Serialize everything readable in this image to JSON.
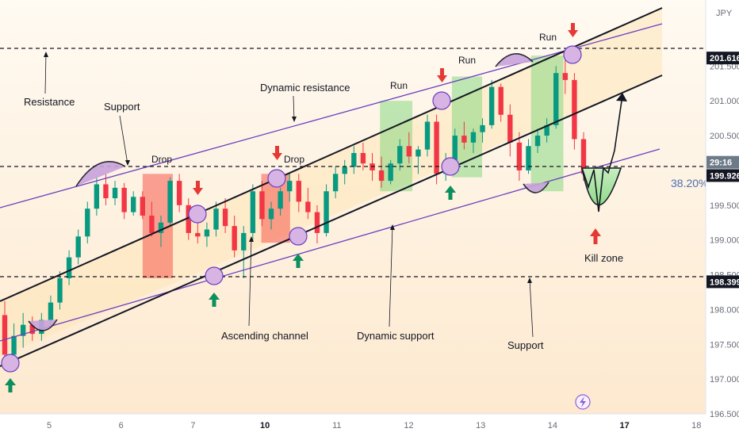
{
  "currency": "JPY",
  "chart_data": {
    "type": "candlestick",
    "y_axis": {
      "ticks": [
        "201.500",
        "201.000",
        "200.500",
        "199.500",
        "199.000",
        "198.500",
        "198.000",
        "197.500",
        "197.000",
        "196.500"
      ],
      "tick_values": [
        201.5,
        201.0,
        200.5,
        199.5,
        199.0,
        198.5,
        198.0,
        197.5,
        197.0,
        196.5
      ],
      "range": [
        196.5,
        202.45
      ]
    },
    "x_axis": {
      "labels": [
        "5",
        "6",
        "7",
        "10",
        "11",
        "12",
        "13",
        "14",
        "17",
        "18"
      ],
      "positions": [
        1,
        2,
        3,
        4,
        5,
        6,
        7,
        8,
        9,
        10
      ],
      "bold": [
        "10",
        "17"
      ]
    },
    "price_labels": [
      {
        "text": "201.616",
        "value": 201.616,
        "style": "dark"
      },
      {
        "text": "29:16",
        "value": 199.98,
        "style": "countdown"
      },
      {
        "text": "199.926",
        "value": 199.926,
        "style": "dark"
      },
      {
        "text": "198.399",
        "value": 198.399,
        "style": "dark"
      }
    ],
    "fib_label": "38.20%",
    "annotations": {
      "resistance": "Resistance",
      "support_top": "Support",
      "dynamic_resistance": "Dynamic resistance",
      "ascending_channel": "Ascending channel",
      "dynamic_support": "Dynamic support",
      "support_bottom": "Support",
      "kill_zone": "Kill zone",
      "drop": "Drop",
      "run": "Run"
    },
    "levels": {
      "resistance": 201.616,
      "support": 199.926,
      "lower_support": 198.399
    },
    "zones": [
      {
        "kind": "drop",
        "x0": 2.3,
        "x1": 2.72,
        "y0": 198.45,
        "y1": 199.95
      },
      {
        "kind": "drop",
        "x0": 3.95,
        "x1": 4.35,
        "y0": 198.96,
        "y1": 199.95
      },
      {
        "kind": "run",
        "x0": 5.6,
        "x1": 6.05,
        "y0": 199.7,
        "y1": 201.0
      },
      {
        "kind": "run",
        "x0": 6.6,
        "x1": 7.02,
        "y0": 199.9,
        "y1": 201.35
      },
      {
        "kind": "run",
        "x0": 7.7,
        "x1": 8.15,
        "y0": 199.7,
        "y1": 201.65
      }
    ],
    "candles": [
      [
        197.92,
        198.12,
        197.2,
        197.35
      ],
      [
        197.35,
        197.8,
        197.25,
        197.62
      ],
      [
        197.62,
        197.95,
        197.45,
        197.78
      ],
      [
        197.78,
        197.9,
        197.55,
        197.65
      ],
      [
        197.65,
        197.95,
        197.55,
        197.85
      ],
      [
        197.85,
        198.2,
        197.78,
        198.1
      ],
      [
        198.1,
        198.55,
        198.0,
        198.45
      ],
      [
        198.45,
        198.85,
        198.35,
        198.75
      ],
      [
        198.75,
        199.15,
        198.65,
        199.05
      ],
      [
        199.05,
        199.55,
        198.95,
        199.45
      ],
      [
        199.45,
        199.9,
        199.35,
        199.8
      ],
      [
        199.8,
        199.95,
        199.5,
        199.6
      ],
      [
        199.6,
        199.85,
        199.5,
        199.75
      ],
      [
        199.75,
        199.82,
        199.3,
        199.4
      ],
      [
        199.4,
        199.7,
        199.35,
        199.62
      ],
      [
        199.62,
        199.7,
        199.3,
        199.35
      ],
      [
        199.35,
        199.55,
        199.05,
        199.1
      ],
      [
        199.1,
        199.35,
        198.9,
        199.25
      ],
      [
        199.25,
        199.9,
        199.2,
        199.85
      ],
      [
        199.85,
        199.95,
        199.4,
        199.5
      ],
      [
        199.5,
        199.6,
        199.0,
        199.1
      ],
      [
        199.1,
        199.3,
        198.95,
        199.05
      ],
      [
        199.05,
        199.25,
        198.9,
        199.15
      ],
      [
        199.15,
        199.55,
        199.05,
        199.45
      ],
      [
        199.45,
        199.6,
        199.1,
        199.2
      ],
      [
        199.2,
        199.35,
        198.75,
        198.85
      ],
      [
        198.85,
        199.2,
        198.45,
        199.1
      ],
      [
        199.1,
        199.8,
        199.0,
        199.7
      ],
      [
        199.7,
        199.85,
        199.2,
        199.3
      ],
      [
        199.3,
        199.55,
        199.15,
        199.45
      ],
      [
        199.45,
        199.75,
        199.35,
        199.7
      ],
      [
        199.7,
        199.95,
        199.55,
        199.85
      ],
      [
        199.85,
        199.95,
        199.4,
        199.55
      ],
      [
        199.55,
        199.75,
        199.3,
        199.4
      ],
      [
        199.4,
        199.5,
        198.95,
        199.1
      ],
      [
        199.1,
        199.8,
        199.05,
        199.7
      ],
      [
        199.7,
        200.05,
        199.6,
        199.95
      ],
      [
        199.95,
        200.15,
        199.8,
        200.05
      ],
      [
        200.05,
        200.35,
        199.95,
        200.25
      ],
      [
        200.25,
        200.4,
        200.0,
        200.1
      ],
      [
        200.1,
        200.25,
        199.85,
        200.0
      ],
      [
        200.0,
        200.2,
        199.75,
        199.85
      ],
      [
        199.85,
        200.15,
        199.8,
        200.1
      ],
      [
        200.1,
        200.45,
        200.0,
        200.35
      ],
      [
        200.35,
        200.55,
        200.1,
        200.2
      ],
      [
        200.2,
        200.35,
        199.95,
        200.3
      ],
      [
        200.3,
        200.8,
        200.2,
        200.7
      ],
      [
        200.7,
        200.8,
        199.8,
        199.95
      ],
      [
        199.95,
        200.25,
        199.85,
        200.15
      ],
      [
        200.15,
        200.6,
        200.05,
        200.5
      ],
      [
        200.5,
        200.7,
        200.3,
        200.4
      ],
      [
        200.4,
        200.6,
        200.25,
        200.55
      ],
      [
        200.55,
        200.75,
        200.4,
        200.65
      ],
      [
        200.65,
        201.3,
        200.6,
        201.2
      ],
      [
        201.2,
        201.25,
        200.7,
        200.8
      ],
      [
        200.8,
        200.95,
        200.2,
        200.4
      ],
      [
        200.4,
        200.55,
        199.85,
        200.0
      ],
      [
        200.0,
        200.45,
        199.95,
        200.35
      ],
      [
        200.35,
        200.6,
        200.25,
        200.5
      ],
      [
        200.5,
        200.75,
        200.4,
        200.65
      ],
      [
        200.65,
        201.5,
        200.6,
        201.4
      ],
      [
        201.4,
        201.62,
        201.1,
        201.3
      ],
      [
        201.3,
        201.4,
        200.3,
        200.45
      ],
      [
        200.45,
        200.55,
        199.85,
        199.95
      ]
    ]
  }
}
